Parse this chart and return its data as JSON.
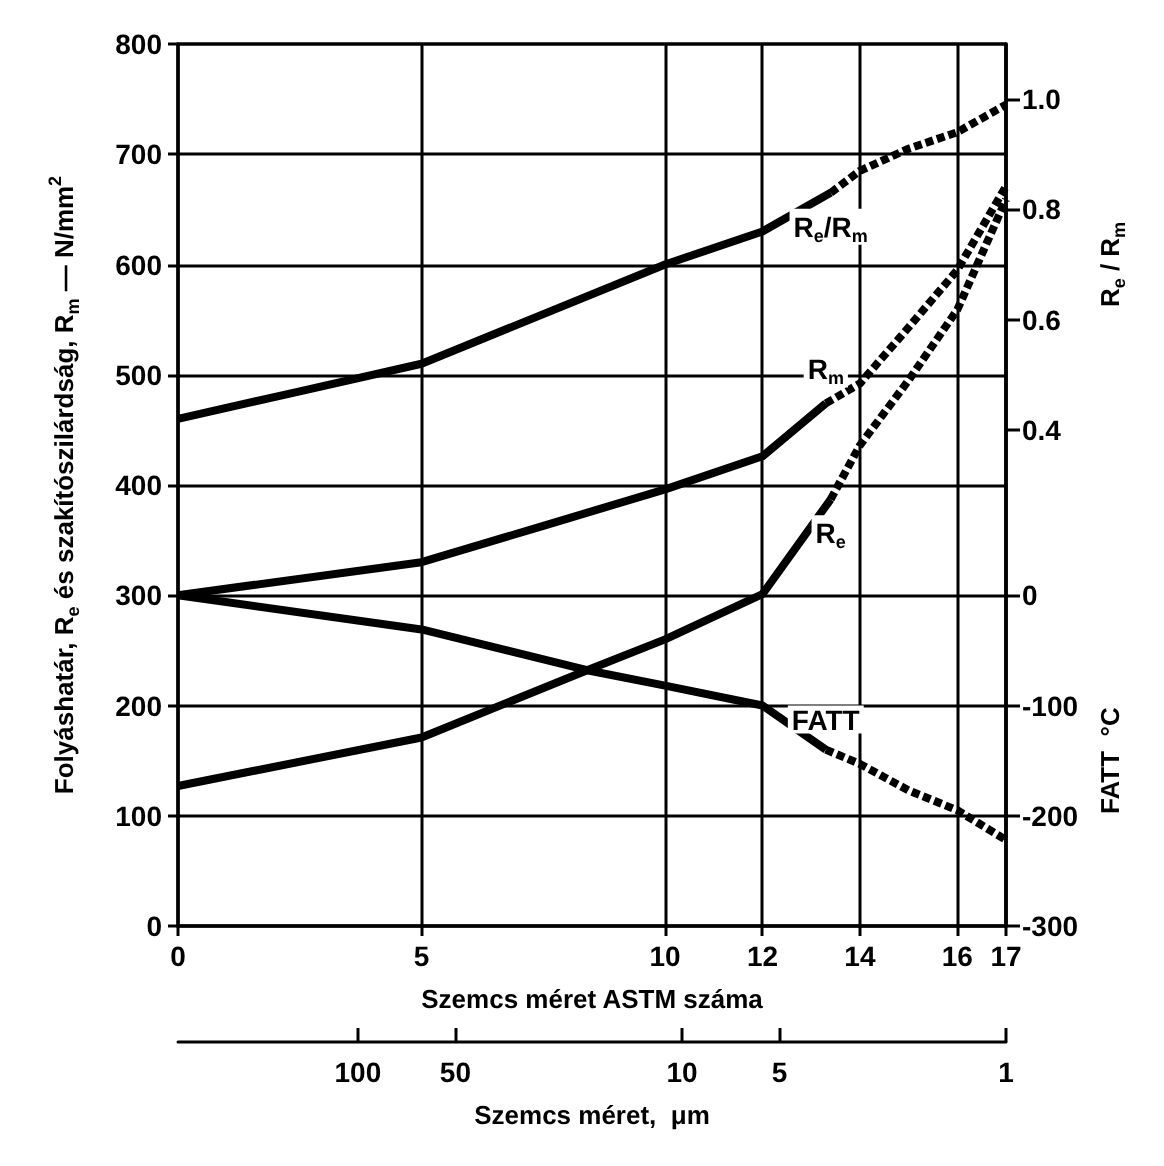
{
  "chart_data": {
    "type": "line",
    "xlabel": "Szemcs méret ASTM száma",
    "x2label": "Szemcs méret,  μm",
    "ylabel": "Folyáshatár, R$_{e}$ és szakítószilárdság, R$_{m}$ — N/mm$^{2}$",
    "y2label": "R$_{e}$ / R$_{m}$",
    "y3label": "FATT  °C",
    "xlim": [
      0,
      17
    ],
    "xticks": [
      0,
      5,
      10,
      12,
      14,
      16,
      17
    ],
    "x2lim": [
      359,
      1
    ],
    "x2ticks": [
      100,
      50,
      10,
      5,
      1
    ],
    "ylim": [
      0,
      800
    ],
    "yticks": [
      0,
      100,
      200,
      300,
      400,
      500,
      600,
      700,
      800
    ],
    "y2lim": [
      -0.5,
      1.1
    ],
    "y2ticks": [
      0.4,
      0.6,
      {
        "value": 1,
        "label": "1.0"
      },
      0.8
    ],
    "y3lim": [
      -300,
      500
    ],
    "y3ticks": [
      -300,
      -200,
      -100,
      0
    ],
    "log": "x2",
    "grid": true,
    "marker": "none",
    "series": [
      {
        "name": "R$_{e}$/R$_{m}$",
        "axis": "y2",
        "color": "#000000",
        "line_style": "solid",
        "x": [
          0,
          2.5,
          5,
          7.5,
          10,
          12,
          13.4
        ],
        "values": [
          0.42,
          0.47,
          0.52,
          0.61,
          0.7,
          0.76,
          0.83
        ]
      },
      {
        "axis": "y2",
        "color": "#000000",
        "line_style": "dashed",
        "x": [
          13.4,
          14,
          15,
          16,
          17
        ],
        "values": [
          0.83,
          0.87,
          0.91,
          0.94,
          0.99
        ]
      },
      {
        "name": "R$_{m}$",
        "color": "#000000",
        "line_style": "solid",
        "x": [
          0,
          5,
          7.5,
          10,
          12,
          13.3
        ],
        "values": [
          300,
          330,
          363,
          396,
          426,
          474
        ]
      },
      {
        "color": "#000000",
        "line_style": "dashed",
        "x": [
          13.3,
          14,
          15,
          16,
          17
        ],
        "values": [
          474,
          492,
          543,
          595,
          671
        ]
      },
      {
        "name": "R$_{e}$",
        "color": "#000000",
        "line_style": "solid",
        "x": [
          0,
          5,
          8.4,
          10,
          12,
          13.4
        ],
        "values": [
          127,
          171,
          232,
          260,
          301,
          387
        ]
      },
      {
        "color": "#000000",
        "line_style": "dashed",
        "x": [
          13.4,
          14,
          15,
          16,
          17
        ],
        "values": [
          387,
          436,
          495,
          559,
          659
        ]
      },
      {
        "name": "FATT",
        "axis": "y3",
        "color": "#000000",
        "line_style": "solid",
        "x": [
          0,
          5,
          8.4,
          10,
          12,
          13.3
        ],
        "values": [
          0,
          -31,
          -68,
          -82,
          -100,
          -140
        ]
      },
      {
        "axis": "y3",
        "color": "#000000",
        "line_style": "dashed",
        "x": [
          13.3,
          14,
          15,
          16,
          17
        ],
        "values": [
          -140,
          -153,
          -177,
          -195,
          -222
        ]
      }
    ]
  }
}
